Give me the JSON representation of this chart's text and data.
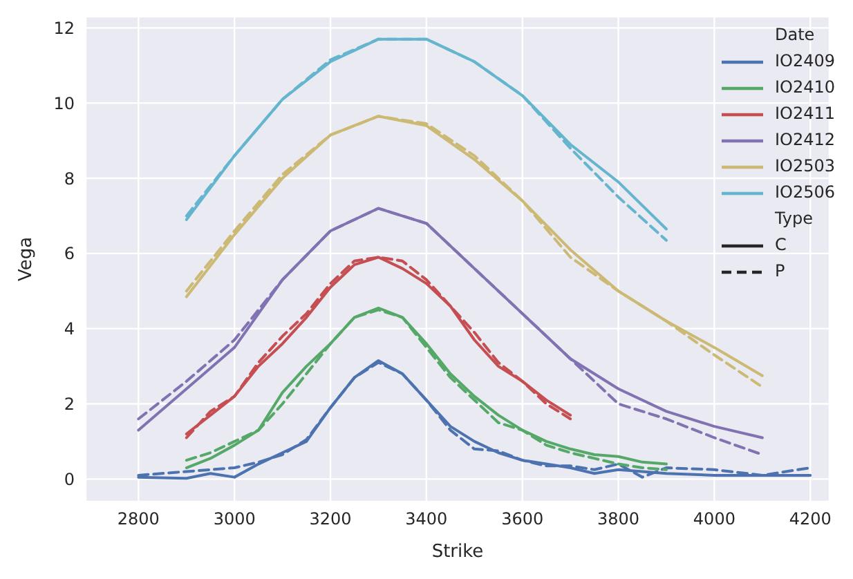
{
  "chart_data": {
    "type": "line",
    "xlabel": "Strike",
    "ylabel": "Vega",
    "legend_title": "Date",
    "annotations": [
      "Type",
      "C",
      "P"
    ],
    "legend": "top right",
    "grid": true,
    "marker": "none",
    "xlim": [
      2690,
      4240
    ],
    "ylim": [
      -0.6,
      12.3
    ],
    "xticks": [
      2800,
      3000,
      3200,
      3400,
      3600,
      3800,
      4000,
      4200
    ],
    "yticks": [
      0,
      2,
      4,
      6,
      8,
      10,
      12
    ],
    "series": [
      {
        "name": "IO2409",
        "color": "#4c72b0",
        "line_style": "solid",
        "x": [
          2800,
          2900,
          2950,
          3000,
          3050,
          3100,
          3150,
          3200,
          3250,
          3300,
          3350,
          3400,
          3450,
          3500,
          3550,
          3600,
          3650,
          3700,
          3750,
          3800,
          3850,
          3900,
          4000,
          4100,
          4200
        ],
        "values": [
          0.05,
          0.02,
          0.15,
          0.05,
          0.4,
          0.7,
          1.0,
          1.9,
          2.7,
          3.15,
          2.8,
          2.1,
          1.4,
          1.0,
          0.7,
          0.5,
          0.4,
          0.3,
          0.15,
          0.25,
          0.2,
          0.15,
          0.1,
          0.1,
          0.1
        ]
      },
      {
        "name": "IO2410",
        "color": "#55a868",
        "line_style": "solid",
        "x": [
          2900,
          2950,
          3000,
          3050,
          3100,
          3150,
          3200,
          3250,
          3300,
          3350,
          3400,
          3450,
          3500,
          3550,
          3600,
          3650,
          3700,
          3750,
          3800,
          3850,
          3900
        ],
        "values": [
          0.3,
          0.55,
          0.9,
          1.3,
          2.3,
          3.0,
          3.6,
          4.3,
          4.55,
          4.3,
          3.6,
          2.8,
          2.2,
          1.7,
          1.3,
          1.0,
          0.8,
          0.65,
          0.6,
          0.45,
          0.4
        ]
      },
      {
        "name": "IO2411",
        "color": "#c44e52",
        "line_style": "solid",
        "x": [
          2900,
          2950,
          3000,
          3050,
          3100,
          3150,
          3200,
          3250,
          3300,
          3350,
          3400,
          3450,
          3500,
          3550,
          3600,
          3650,
          3700
        ],
        "values": [
          1.2,
          1.7,
          2.2,
          3.0,
          3.6,
          4.3,
          5.1,
          5.7,
          5.9,
          5.6,
          5.2,
          4.6,
          3.7,
          3.0,
          2.6,
          2.1,
          1.7
        ]
      },
      {
        "name": "IO2412",
        "color": "#8172b2",
        "line_style": "solid",
        "x": [
          2800,
          2900,
          3000,
          3100,
          3200,
          3300,
          3400,
          3500,
          3600,
          3700,
          3800,
          3900,
          4000,
          4100
        ],
        "values": [
          1.3,
          2.4,
          3.5,
          5.3,
          6.6,
          7.2,
          6.8,
          5.6,
          4.4,
          3.2,
          2.4,
          1.8,
          1.4,
          1.1
        ]
      },
      {
        "name": "IO2503",
        "color": "#ccb974",
        "line_style": "solid",
        "x": [
          2900,
          3000,
          3100,
          3200,
          3300,
          3400,
          3500,
          3600,
          3700,
          3800,
          3900,
          4000,
          4100
        ],
        "values": [
          4.85,
          6.5,
          8.0,
          9.15,
          9.65,
          9.4,
          8.5,
          7.4,
          6.1,
          5.0,
          4.2,
          3.5,
          2.75
        ]
      },
      {
        "name": "IO2506",
        "color": "#64b5cd",
        "line_style": "solid",
        "x": [
          2900,
          3000,
          3100,
          3200,
          3300,
          3400,
          3500,
          3600,
          3700,
          3800,
          3900
        ],
        "values": [
          6.9,
          8.6,
          10.1,
          11.1,
          11.7,
          11.7,
          11.1,
          10.2,
          8.9,
          7.9,
          6.65
        ]
      },
      {
        "color": "#4c72b0",
        "line_style": "dashed",
        "x": [
          2800,
          2900,
          3000,
          3050,
          3100,
          3150,
          3200,
          3250,
          3300,
          3350,
          3400,
          3450,
          3500,
          3550,
          3600,
          3650,
          3700,
          3750,
          3800,
          3850,
          3900,
          4000,
          4100,
          4200
        ],
        "values": [
          0.1,
          0.2,
          0.3,
          0.45,
          0.65,
          1.05,
          1.9,
          2.7,
          3.1,
          2.8,
          2.1,
          1.3,
          0.8,
          0.75,
          0.5,
          0.35,
          0.35,
          0.25,
          0.4,
          0.05,
          0.3,
          0.25,
          0.1,
          0.3
        ]
      },
      {
        "color": "#55a868",
        "line_style": "dashed",
        "x": [
          2900,
          2950,
          3000,
          3050,
          3100,
          3150,
          3200,
          3250,
          3300,
          3350,
          3400,
          3450,
          3500,
          3550,
          3600,
          3650,
          3700,
          3750,
          3800,
          3850,
          3900
        ],
        "values": [
          0.5,
          0.7,
          1.0,
          1.3,
          2.0,
          2.8,
          3.6,
          4.3,
          4.5,
          4.3,
          3.5,
          2.7,
          2.1,
          1.5,
          1.3,
          0.9,
          0.7,
          0.55,
          0.4,
          0.3,
          0.25
        ]
      },
      {
        "color": "#c44e52",
        "line_style": "dashed",
        "x": [
          2900,
          2950,
          3000,
          3050,
          3100,
          3150,
          3200,
          3250,
          3300,
          3350,
          3400,
          3450,
          3500,
          3550,
          3600,
          3650,
          3700
        ],
        "values": [
          1.1,
          1.8,
          2.2,
          3.1,
          3.8,
          4.4,
          5.2,
          5.8,
          5.9,
          5.8,
          5.3,
          4.6,
          3.9,
          3.1,
          2.6,
          2.0,
          1.6
        ]
      },
      {
        "color": "#8172b2",
        "line_style": "dashed",
        "x": [
          2800,
          2900,
          3000,
          3100,
          3200,
          3300,
          3400,
          3500,
          3600,
          3700,
          3800,
          3900,
          4000,
          4100
        ],
        "values": [
          1.6,
          2.6,
          3.7,
          5.3,
          6.6,
          7.2,
          6.8,
          5.6,
          4.4,
          3.2,
          2.0,
          1.6,
          1.1,
          0.65
        ]
      },
      {
        "color": "#ccb974",
        "line_style": "dashed",
        "x": [
          2900,
          3000,
          3100,
          3200,
          3300,
          3400,
          3500,
          3600,
          3700,
          3800,
          3900,
          4000,
          4100
        ],
        "values": [
          5.0,
          6.6,
          8.1,
          9.15,
          9.65,
          9.45,
          8.6,
          7.4,
          5.9,
          5.0,
          4.2,
          3.3,
          2.45
        ]
      },
      {
        "color": "#64b5cd",
        "line_style": "dashed",
        "x": [
          2900,
          3000,
          3100,
          3200,
          3300,
          3400,
          3500,
          3600,
          3700,
          3800,
          3900
        ],
        "values": [
          7.0,
          8.6,
          10.1,
          11.15,
          11.7,
          11.7,
          11.1,
          10.2,
          8.8,
          7.5,
          6.35
        ]
      }
    ]
  }
}
